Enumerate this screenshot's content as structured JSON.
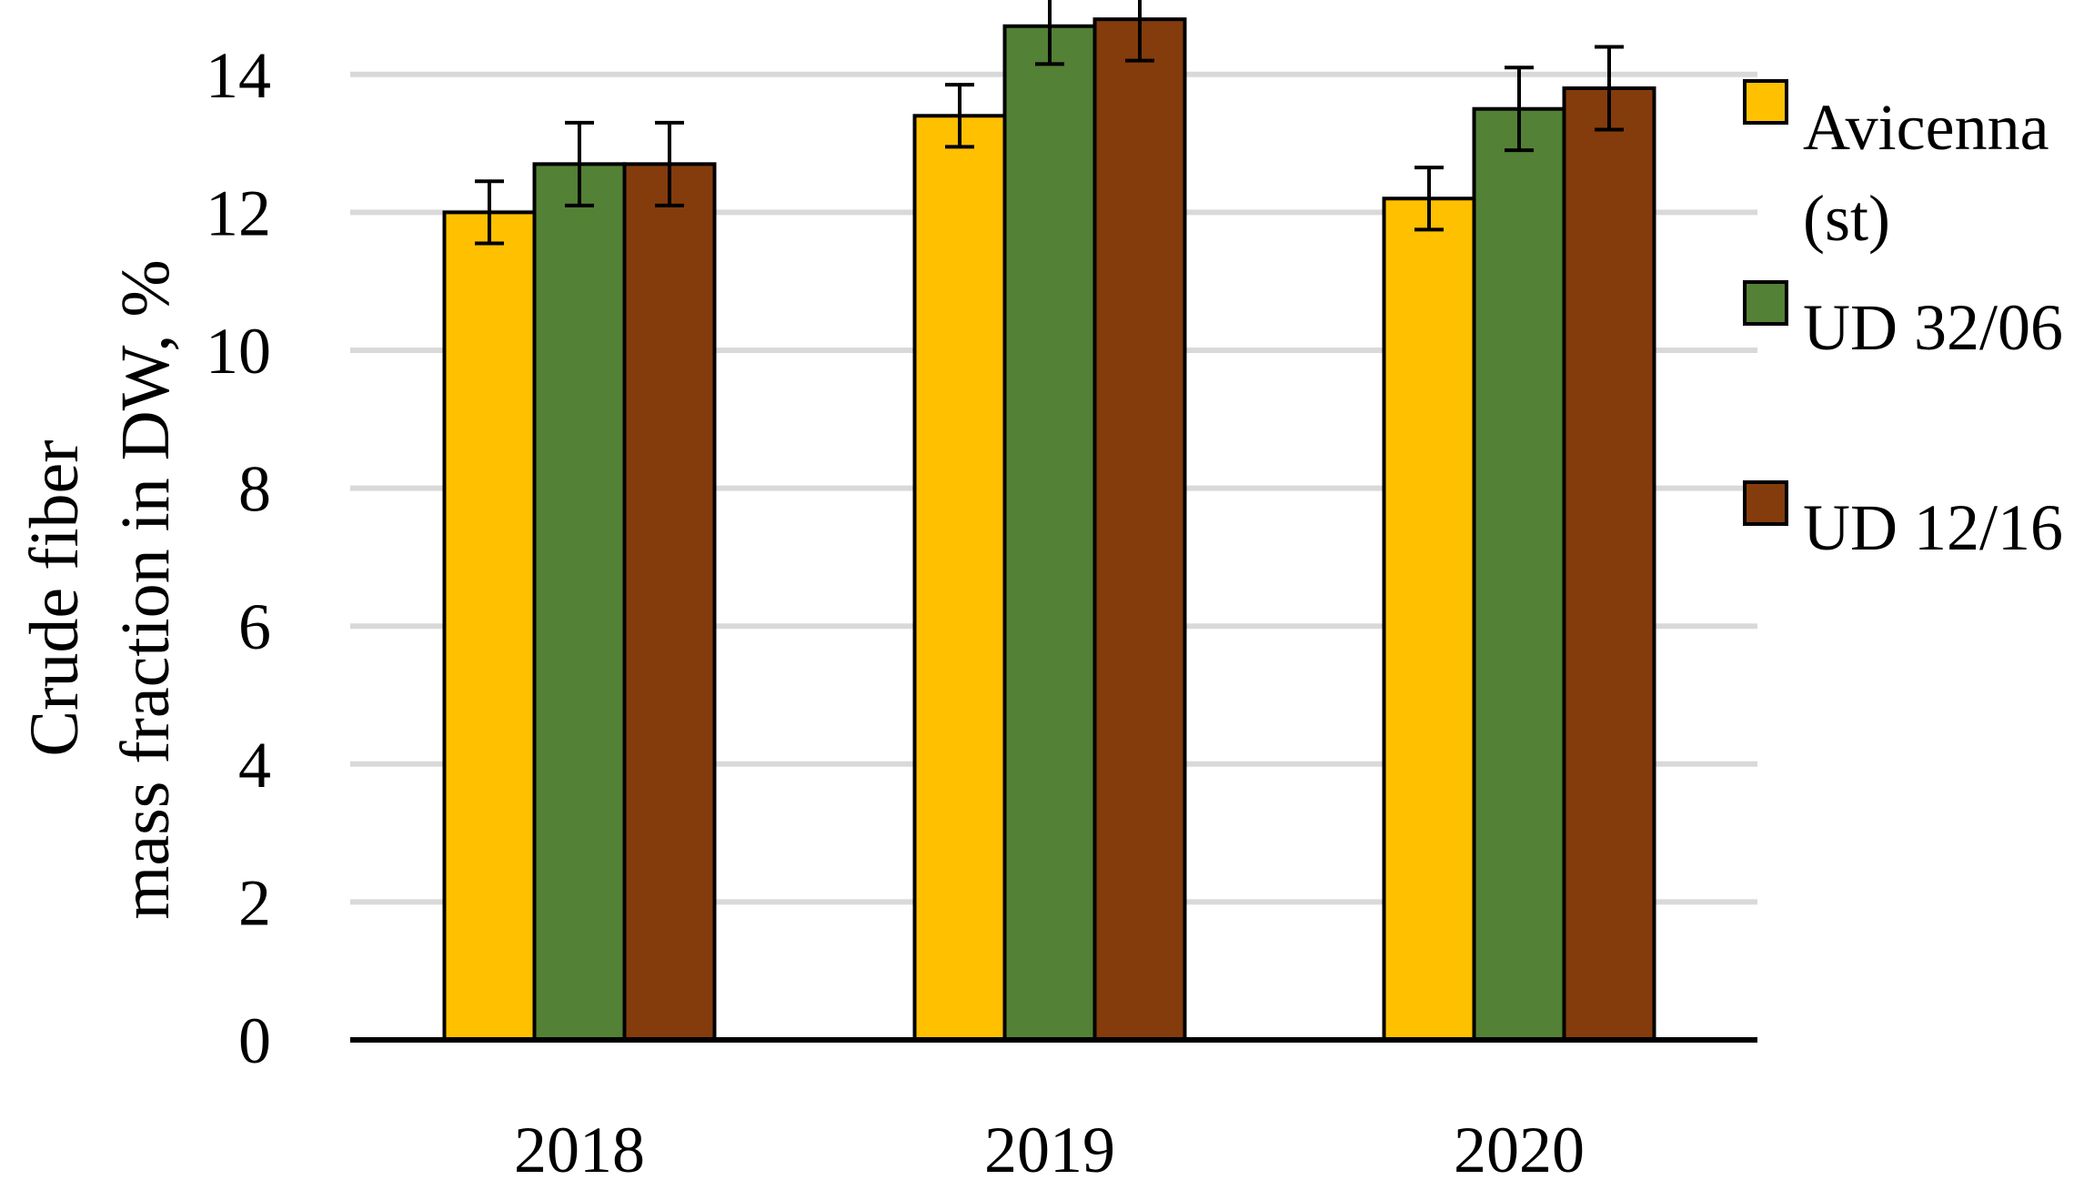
{
  "chart_data": {
    "type": "bar",
    "title": "",
    "xlabel": "",
    "ylabel_lines": [
      "Crude fiber",
      "mass fraction in DW, %"
    ],
    "categories": [
      "2018",
      "2019",
      "2020"
    ],
    "ylim": [
      0,
      15
    ],
    "yticks": [
      0,
      2,
      4,
      6,
      8,
      10,
      12,
      14
    ],
    "grid": true,
    "legend_position": "right",
    "series": [
      {
        "name": "Avicenna (st)",
        "legend_lines": [
          "Avicenna",
          "(st)"
        ],
        "color": "#ffc000",
        "values": [
          12.0,
          13.4,
          12.2
        ],
        "errors": [
          0.45,
          0.45,
          0.45
        ]
      },
      {
        "name": "UD 32/06",
        "legend_lines": [
          "UD 32/06"
        ],
        "color": "#538135",
        "values": [
          12.7,
          14.7,
          13.5
        ],
        "errors": [
          0.6,
          0.55,
          0.6
        ]
      },
      {
        "name": "UD 12/16",
        "legend_lines": [
          "UD 12/16"
        ],
        "color": "#843c0c",
        "values": [
          12.7,
          14.8,
          13.8
        ],
        "errors": [
          0.6,
          0.6,
          0.6
        ]
      }
    ]
  }
}
